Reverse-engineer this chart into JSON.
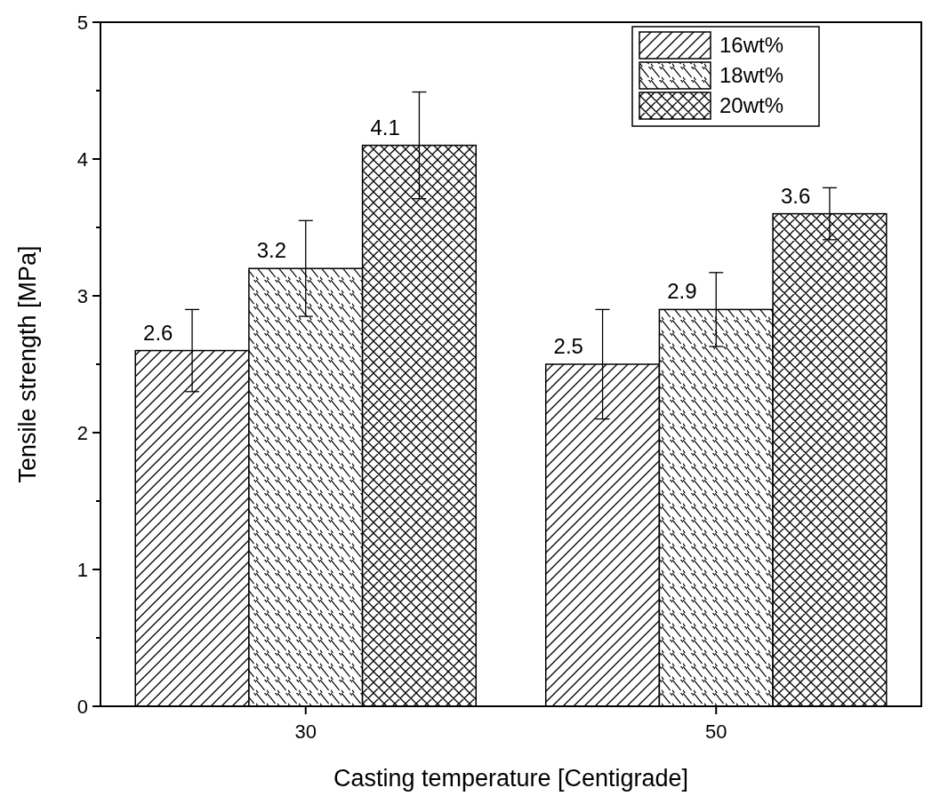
{
  "chart_data": {
    "type": "bar",
    "xlabel": "Casting temperature [Centigrade]",
    "ylabel": "Tensile strength [MPa]",
    "categories": [
      "30",
      "50"
    ],
    "series": [
      {
        "name": "16wt%",
        "color": "#000000",
        "values": [
          2.6,
          2.5
        ],
        "errors": [
          0.3,
          0.4
        ]
      },
      {
        "name": "18wt%",
        "color": "#000000",
        "values": [
          3.2,
          2.9
        ],
        "errors": [
          0.35,
          0.27
        ]
      },
      {
        "name": "20wt%",
        "color": "#000000",
        "values": [
          4.1,
          3.6
        ],
        "errors": [
          0.39,
          0.19
        ]
      }
    ],
    "ylim": [
      0,
      5
    ],
    "yticks": [
      0,
      {
        "value": 0.5,
        "label": null
      },
      1,
      {
        "value": 1.5,
        "label": null
      },
      2,
      {
        "value": 2.5,
        "label": null
      },
      3,
      {
        "value": 3.5,
        "label": null
      },
      4,
      {
        "value": 4.5,
        "label": null
      },
      5
    ],
    "data_labels": true,
    "legend": "top right",
    "grid": false
  }
}
